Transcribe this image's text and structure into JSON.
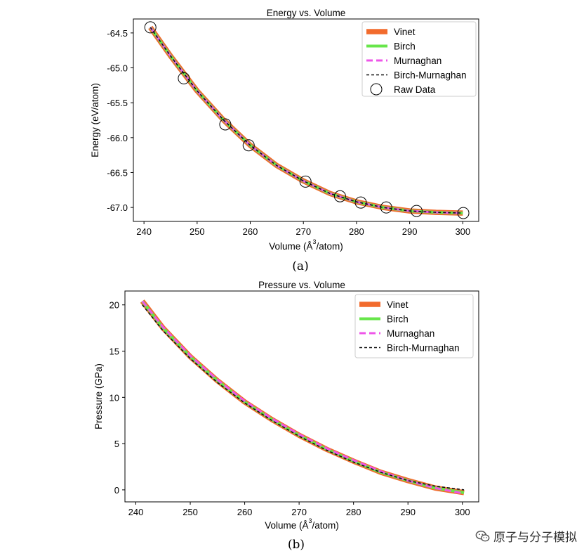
{
  "chart_data": [
    {
      "type": "line",
      "title": "Energy vs. Volume",
      "xlabel_main": "Volume (Å",
      "xlabel_sup": "3",
      "xlabel_tail": "/atom)",
      "ylabel": "Energy (eV/atom)",
      "xlim": [
        238,
        303
      ],
      "ylim": [
        -67.2,
        -64.3
      ],
      "xticks": [
        240,
        250,
        260,
        270,
        280,
        290,
        300
      ],
      "yticks": [
        -64.5,
        -65.0,
        -65.5,
        -66.0,
        -66.5,
        -67.0
      ],
      "ytick_labels": [
        "-64.5",
        "-65.0",
        "-65.5",
        "-66.0",
        "-66.5",
        "-67.0"
      ],
      "legend_position": "top-right",
      "caption": "(a)",
      "series": [
        {
          "name": "Vinet",
          "style": "thick",
          "color": "#f26b2d",
          "x": [
            241.2,
            245,
            250,
            255,
            260,
            265,
            270,
            275,
            280,
            285,
            290,
            295,
            300
          ],
          "y": [
            -64.42,
            -64.83,
            -65.33,
            -65.75,
            -66.11,
            -66.4,
            -66.62,
            -66.8,
            -66.92,
            -67.0,
            -67.05,
            -67.07,
            -67.08
          ]
        },
        {
          "name": "Birch",
          "style": "medium",
          "color": "#67e64a",
          "x": [
            241.2,
            245,
            250,
            255,
            260,
            265,
            270,
            275,
            280,
            285,
            290,
            295,
            300
          ],
          "y": [
            -64.42,
            -64.83,
            -65.33,
            -65.75,
            -66.11,
            -66.4,
            -66.62,
            -66.8,
            -66.92,
            -67.0,
            -67.05,
            -67.07,
            -67.08
          ]
        },
        {
          "name": "Murnaghan",
          "style": "dashed",
          "color": "#ee55e8",
          "x": [
            241.2,
            245,
            250,
            255,
            260,
            265,
            270,
            275,
            280,
            285,
            290,
            295,
            300
          ],
          "y": [
            -64.42,
            -64.83,
            -65.33,
            -65.75,
            -66.11,
            -66.4,
            -66.62,
            -66.8,
            -66.92,
            -67.0,
            -67.05,
            -67.07,
            -67.08
          ]
        },
        {
          "name": "Birch-Murnaghan",
          "style": "dashed-thin",
          "color": "#111111",
          "x": [
            241.2,
            245,
            250,
            255,
            260,
            265,
            270,
            275,
            280,
            285,
            290,
            295,
            300
          ],
          "y": [
            -64.42,
            -64.83,
            -65.33,
            -65.75,
            -66.11,
            -66.4,
            -66.62,
            -66.8,
            -66.92,
            -67.0,
            -67.05,
            -67.07,
            -67.08
          ]
        }
      ],
      "scatter": {
        "name": "Raw Data",
        "x": [
          241.2,
          247.5,
          255.3,
          259.7,
          270.4,
          276.9,
          280.8,
          285.6,
          291.3,
          300.1
        ],
        "y": [
          -64.42,
          -65.15,
          -65.81,
          -66.11,
          -66.63,
          -66.84,
          -66.93,
          -67.0,
          -67.05,
          -67.08
        ]
      }
    },
    {
      "type": "line",
      "title": "Pressure vs. Volume",
      "xlabel_main": "Volume (Å",
      "xlabel_sup": "3",
      "xlabel_tail": "/atom)",
      "ylabel": "Pressure (GPa)",
      "xlim": [
        238,
        303
      ],
      "ylim": [
        -1.3,
        21.5
      ],
      "xticks": [
        240,
        250,
        260,
        270,
        280,
        290,
        300
      ],
      "yticks": [
        0,
        5,
        10,
        15,
        20
      ],
      "ytick_labels": [
        "0",
        "5",
        "10",
        "15",
        "20"
      ],
      "legend_position": "top-right",
      "caption": "(b)",
      "series": [
        {
          "name": "Vinet",
          "style": "thick",
          "color": "#f26b2d",
          "x": [
            241.2,
            245,
            250,
            255,
            260,
            265,
            270,
            275,
            280,
            285,
            290,
            295,
            300.3
          ],
          "y": [
            20.4,
            17.5,
            14.4,
            11.8,
            9.5,
            7.6,
            5.9,
            4.4,
            3.1,
            1.9,
            1.0,
            0.2,
            -0.3
          ]
        },
        {
          "name": "Birch",
          "style": "medium",
          "color": "#67e64a",
          "x": [
            241.2,
            245,
            250,
            255,
            260,
            265,
            270,
            275,
            280,
            285,
            290,
            295,
            300.3
          ],
          "y": [
            20.4,
            17.5,
            14.4,
            11.8,
            9.5,
            7.6,
            5.9,
            4.4,
            3.1,
            1.9,
            1.0,
            0.2,
            -0.3
          ]
        },
        {
          "name": "Murnaghan",
          "style": "dashed",
          "color": "#ee55e8",
          "x": [
            241.2,
            245,
            250,
            255,
            260,
            265,
            270,
            275,
            280,
            285,
            290,
            295,
            300.3
          ],
          "y": [
            20.4,
            17.6,
            14.5,
            11.9,
            9.6,
            7.7,
            6.0,
            4.5,
            3.2,
            2.0,
            1.0,
            0.2,
            -0.4
          ]
        },
        {
          "name": "Birch-Murnaghan",
          "style": "dashed-thin",
          "color": "#111111",
          "x": [
            241.2,
            245,
            250,
            255,
            260,
            265,
            270,
            275,
            280,
            285,
            290,
            295,
            300.3
          ],
          "y": [
            20.0,
            17.2,
            14.2,
            11.6,
            9.4,
            7.5,
            5.8,
            4.3,
            3.0,
            1.9,
            1.0,
            0.4,
            0.0
          ]
        }
      ]
    }
  ],
  "watermark": {
    "text": "原子与分子模拟",
    "icon": "wechat-icon"
  }
}
